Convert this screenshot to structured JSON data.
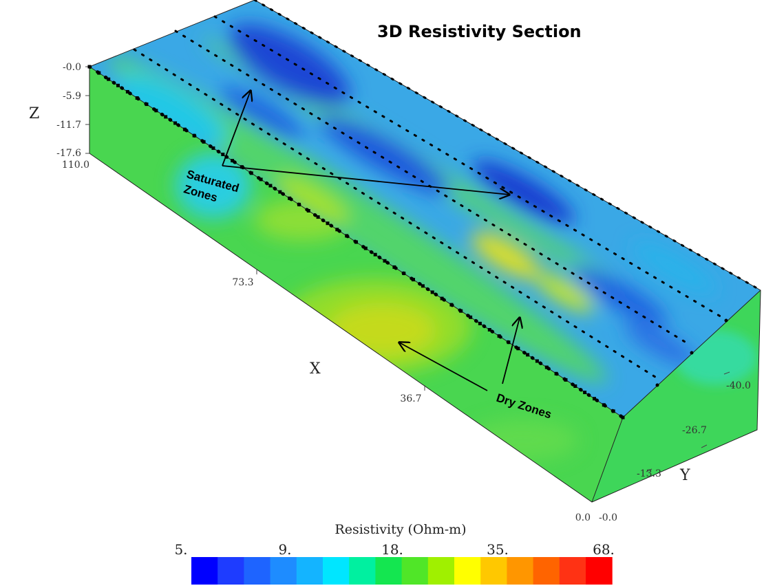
{
  "title": "3D Resistivity Section",
  "axes": {
    "z": {
      "name": "Z",
      "ticks": [
        "-0.0",
        "-5.9",
        "-11.7",
        "-17.6"
      ]
    },
    "x": {
      "name": "X",
      "ticks": [
        "110.0",
        "73.3",
        "36.7",
        "0.0"
      ]
    },
    "y": {
      "name": "Y",
      "ticks": [
        "-0.0",
        "-13.3",
        "-26.7",
        "-40.0"
      ]
    }
  },
  "annotations": {
    "saturated": "Saturated Zones",
    "dry": "Dry Zones"
  },
  "legend": {
    "title": "Resistivity (Ohm-m)",
    "labels": [
      "5.",
      "9.",
      "18.",
      "35.",
      "68."
    ],
    "colors": [
      "#0000ff",
      "#1e3cff",
      "#1e64ff",
      "#1e8cff",
      "#14b4ff",
      "#00e6ff",
      "#00f0a0",
      "#14e650",
      "#50e628",
      "#a0f000",
      "#ffff00",
      "#ffc800",
      "#ff9600",
      "#ff6400",
      "#ff3214",
      "#ff0000"
    ]
  },
  "palette": {
    "top_base": "#1f9ae0",
    "front_base": "#49d650",
    "side_base": "#3ed65a",
    "saturated": "#1a3fd0",
    "dry": "#e8d21a",
    "electrode": "#000000"
  }
}
